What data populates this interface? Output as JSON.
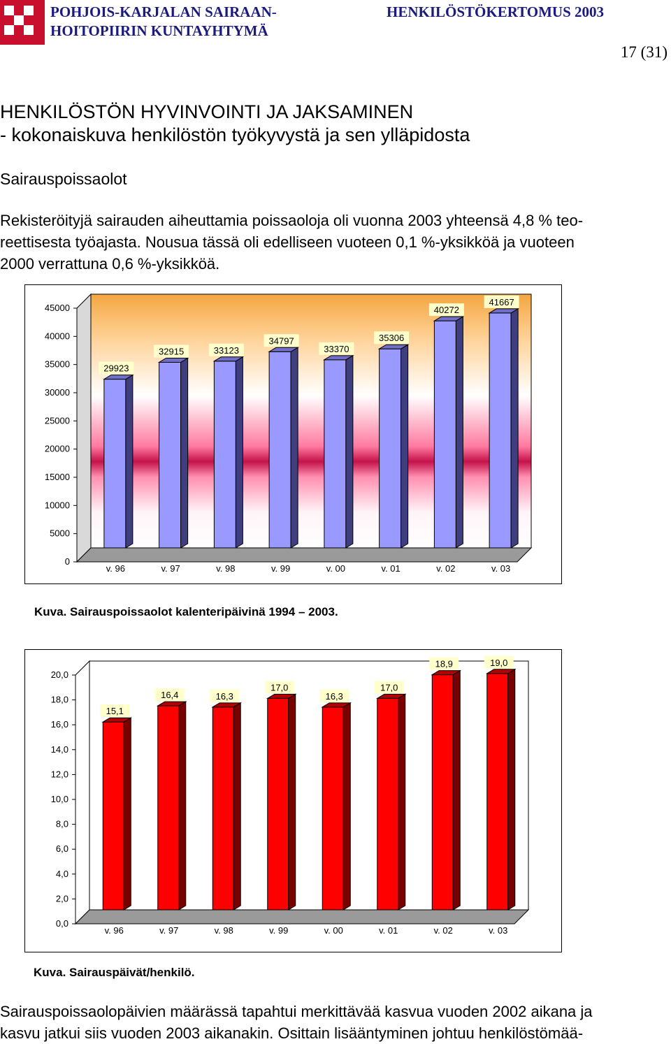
{
  "header": {
    "org_line1": "POHJOIS-KARJALAN SAIRAAN-",
    "org_line2": "HOITOPIIRIN KUNTAYHTYMÄ",
    "doc_title": "HENKILÖSTÖKERTOMUS 2003",
    "page_number": "17 (31)"
  },
  "colors": {
    "header_text": "#1a1a80",
    "logo": "#c8102e",
    "bar1": "#9999ff",
    "bar2": "#ff0000"
  },
  "section": {
    "title_line1": "HENKILÖSTÖN HYVINVOINTI JA JAKSAMINEN",
    "title_line2": "- kokonaiskuva henkilöstön työkyvystä ja sen ylläpidosta",
    "subheading": "Sairauspoissaolot"
  },
  "paragraph1": {
    "line1": "Rekisteröityjä sairauden aiheuttamia poissaoloja oli vuonna 2003 yhteensä 4,8 % teo-",
    "line2": "reettisesta työajasta. Nousua tässä oli edelliseen vuoteen 0,1 %-yksikköä ja vuoteen",
    "line3": "2000 verrattuna 0,6 %-yksikköä."
  },
  "chart_data": [
    {
      "type": "bar",
      "categories": [
        "v. 96",
        "v. 97",
        "v. 98",
        "v. 99",
        "v. 00",
        "v. 01",
        "v. 02",
        "v. 03"
      ],
      "values": [
        29923,
        32915,
        33123,
        34797,
        33370,
        35306,
        40272,
        41667
      ],
      "data_labels": [
        "29923",
        "32915",
        "33123",
        "34797",
        "33370",
        "35306",
        "40272",
        "41667"
      ],
      "ylim": [
        0,
        45000
      ],
      "yticks": [
        "0",
        "5000",
        "10000",
        "15000",
        "20000",
        "25000",
        "30000",
        "35000",
        "40000",
        "45000"
      ],
      "grid": false,
      "caption": "Kuva. Sairauspoissaolot kalenteripäivinä 1994 – 2003."
    },
    {
      "type": "bar",
      "categories": [
        "v. 96",
        "v. 97",
        "v. 98",
        "v. 99",
        "v. 00",
        "v. 01",
        "v. 02",
        "v. 03"
      ],
      "values": [
        15.1,
        16.4,
        16.3,
        17.0,
        16.3,
        17.0,
        18.9,
        19.0
      ],
      "data_labels": [
        "15,1",
        "16,4",
        "16,3",
        "17,0",
        "16,3",
        "17,0",
        "18,9",
        "19,0"
      ],
      "ylim": [
        0,
        20
      ],
      "yticks": [
        "0,0",
        "2,0",
        "4,0",
        "6,0",
        "8,0",
        "10,0",
        "12,0",
        "14,0",
        "16,0",
        "18,0",
        "20,0"
      ],
      "grid": false,
      "caption": "Kuva. Sairauspäivät/henkilö."
    }
  ],
  "paragraph2": {
    "line1": "Sairauspoissaolopäivien määrässä tapahtui merkittävää kasvua vuoden 2002 aikana ja",
    "line2": "kasvu jatkui siis vuoden 2003 aikanakin. Osittain lisääntyminen johtuu henkilöstömää-"
  }
}
